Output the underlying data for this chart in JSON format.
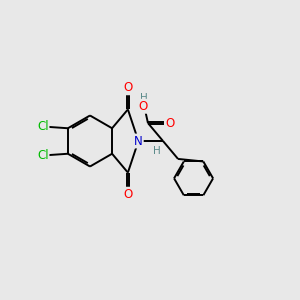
{
  "background_color": "#e8e8e8",
  "bond_color": "#000000",
  "atom_colors": {
    "O": "#ff0000",
    "N": "#0000cc",
    "Cl": "#00bb00",
    "H": "#5a8a8a",
    "C": "#000000"
  },
  "font_size": 8.5,
  "linewidth": 1.4
}
